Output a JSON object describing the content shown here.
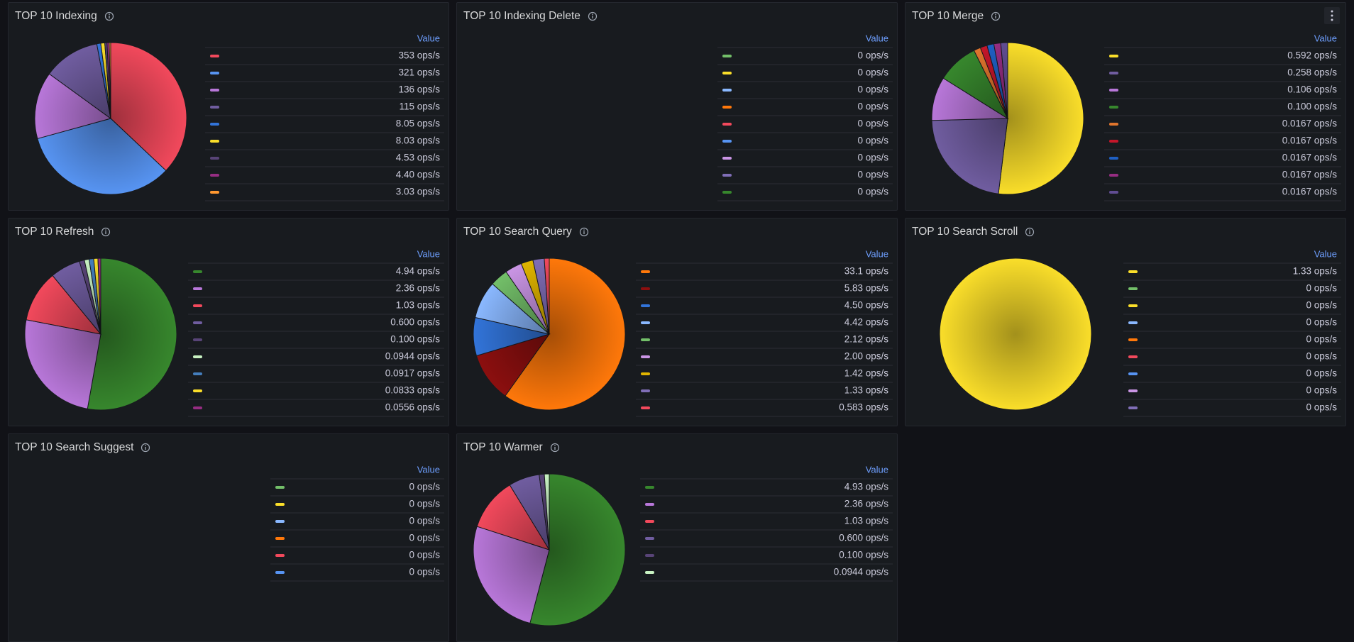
{
  "chart_data": [
    {
      "type": "pie",
      "title": "TOP 10 Indexing",
      "legend_header": "Value",
      "values": [
        353,
        321,
        136,
        115,
        8.05,
        8.03,
        4.53,
        4.4,
        3.03
      ],
      "value_labels": [
        "353 ops/s",
        "321 ops/s",
        "136 ops/s",
        "115 ops/s",
        "8.05 ops/s",
        "8.03 ops/s",
        "4.53 ops/s",
        "4.40 ops/s",
        "3.03 ops/s"
      ],
      "colors": [
        "#F2495C",
        "#5794F2",
        "#B877D9",
        "#705DA0",
        "#3274D9",
        "#FADE2A",
        "#584477",
        "#962D82",
        "#FF9830"
      ]
    },
    {
      "type": "pie",
      "title": "TOP 10 Indexing Delete",
      "legend_header": "Value",
      "values": [
        0,
        0,
        0,
        0,
        0,
        0,
        0,
        0,
        0
      ],
      "value_labels": [
        "0 ops/s",
        "0 ops/s",
        "0 ops/s",
        "0 ops/s",
        "0 ops/s",
        "0 ops/s",
        "0 ops/s",
        "0 ops/s",
        "0 ops/s"
      ],
      "colors": [
        "#73BF69",
        "#FADE2A",
        "#8AB8FF",
        "#FF780A",
        "#F2495C",
        "#5794F2",
        "#CA95E5",
        "#806EB7",
        "#37872D"
      ]
    },
    {
      "type": "pie",
      "title": "TOP 10 Merge",
      "legend_header": "Value",
      "values": [
        0.592,
        0.258,
        0.106,
        0.1,
        0.0167,
        0.0167,
        0.0167,
        0.0167,
        0.0167
      ],
      "value_labels": [
        "0.592 ops/s",
        "0.258 ops/s",
        "0.106 ops/s",
        "0.100 ops/s",
        "0.0167 ops/s",
        "0.0167 ops/s",
        "0.0167 ops/s",
        "0.0167 ops/s",
        "0.0167 ops/s"
      ],
      "colors": [
        "#FADE2A",
        "#705DA0",
        "#B877D9",
        "#37872D",
        "#E0752D",
        "#C4162A",
        "#1F60C4",
        "#962D82",
        "#614D93"
      ]
    },
    {
      "type": "pie",
      "title": "TOP 10 Refresh",
      "legend_header": "Value",
      "values": [
        4.94,
        2.36,
        1.03,
        0.6,
        0.1,
        0.0944,
        0.0917,
        0.0833,
        0.0556
      ],
      "value_labels": [
        "4.94 ops/s",
        "2.36 ops/s",
        "1.03 ops/s",
        "0.600 ops/s",
        "0.100 ops/s",
        "0.0944 ops/s",
        "0.0917 ops/s",
        "0.0833 ops/s",
        "0.0556 ops/s"
      ],
      "colors": [
        "#37872D",
        "#B877D9",
        "#F2495C",
        "#705DA0",
        "#584477",
        "#C8F2C2",
        "#447EBC",
        "#FADE2A",
        "#962D82"
      ]
    },
    {
      "type": "pie",
      "title": "TOP 10 Search Query",
      "legend_header": "Value",
      "values": [
        33.1,
        5.83,
        4.5,
        4.42,
        2.12,
        2.0,
        1.42,
        1.33,
        0.583
      ],
      "value_labels": [
        "33.1 ops/s",
        "5.83 ops/s",
        "4.50 ops/s",
        "4.42 ops/s",
        "2.12 ops/s",
        "2.00 ops/s",
        "1.42 ops/s",
        "1.33 ops/s",
        "0.583 ops/s"
      ],
      "colors": [
        "#FF780A",
        "#8C0F0F",
        "#3274D9",
        "#8AB8FF",
        "#73BF69",
        "#CA95E5",
        "#E0B400",
        "#806EB7",
        "#F2495C"
      ]
    },
    {
      "type": "pie",
      "title": "TOP 10 Search Scroll",
      "legend_header": "Value",
      "values": [
        1.33,
        0,
        0,
        0,
        0,
        0,
        0,
        0,
        0
      ],
      "value_labels": [
        "1.33 ops/s",
        "0 ops/s",
        "0 ops/s",
        "0 ops/s",
        "0 ops/s",
        "0 ops/s",
        "0 ops/s",
        "0 ops/s",
        "0 ops/s"
      ],
      "colors": [
        "#FADE2A",
        "#73BF69",
        "#FADE2A",
        "#8AB8FF",
        "#FF780A",
        "#F2495C",
        "#5794F2",
        "#CA95E5",
        "#806EB7"
      ]
    },
    {
      "type": "pie",
      "title": "TOP 10 Search Suggest",
      "legend_header": "Value",
      "values": [
        0,
        0,
        0,
        0,
        0,
        0
      ],
      "value_labels": [
        "0 ops/s",
        "0 ops/s",
        "0 ops/s",
        "0 ops/s",
        "0 ops/s",
        "0 ops/s"
      ],
      "colors": [
        "#73BF69",
        "#FADE2A",
        "#8AB8FF",
        "#FF780A",
        "#F2495C",
        "#5794F2"
      ]
    },
    {
      "type": "pie",
      "title": "TOP 10 Warmer",
      "legend_header": "Value",
      "values": [
        4.93,
        2.36,
        1.03,
        0.6,
        0.1,
        0.0944
      ],
      "value_labels": [
        "4.93 ops/s",
        "2.36 ops/s",
        "1.03 ops/s",
        "0.600 ops/s",
        "0.100 ops/s",
        "0.0944 ops/s"
      ],
      "colors": [
        "#37872D",
        "#B877D9",
        "#F2495C",
        "#705DA0",
        "#584477",
        "#C8F2C2"
      ]
    }
  ]
}
